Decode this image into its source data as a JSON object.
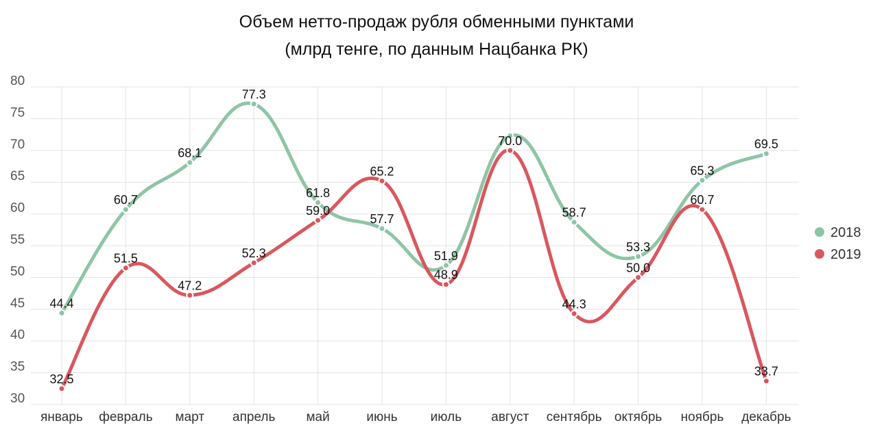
{
  "chart_data": {
    "type": "line",
    "title": "Объем нетто-продаж рубля обменными пунктами",
    "subtitle": "(млрд тенге, по данным Нацбанка РК)",
    "xlabel": "",
    "ylabel": "",
    "ylim": [
      30,
      80
    ],
    "yticks": [
      "30",
      "35",
      "40",
      "45",
      "50",
      "55",
      "60",
      "65",
      "70",
      "75",
      "80"
    ],
    "categories": [
      "январь",
      "февраль",
      "март",
      "апрель",
      "май",
      "июнь",
      "июль",
      "август",
      "сентябрь",
      "октябрь",
      "ноябрь",
      "декабрь"
    ],
    "grid": true,
    "legend_position": "right",
    "series": [
      {
        "name": "2018",
        "color": "#8ec5a6",
        "values": [
          44.4,
          60.7,
          68.1,
          77.3,
          61.8,
          57.7,
          51.9,
          72.3,
          58.7,
          53.3,
          65.3,
          69.5
        ],
        "labels": [
          "44.4",
          "60.7",
          "68.1",
          "77.3",
          "61.8",
          "57.7",
          "51.9",
          "",
          "58.7",
          "53.3",
          "65.3",
          "69.5"
        ]
      },
      {
        "name": "2019",
        "color": "#d9575e",
        "values": [
          32.5,
          51.5,
          47.2,
          52.3,
          59.0,
          65.2,
          48.9,
          70.0,
          44.3,
          50.0,
          60.7,
          33.7
        ],
        "labels": [
          "32.5",
          "51.5",
          "47.2",
          "52.3",
          "59.0",
          "65.2",
          "48.9",
          "70.0",
          "44.3",
          "50.0",
          "60.7",
          "33.7"
        ]
      }
    ]
  }
}
